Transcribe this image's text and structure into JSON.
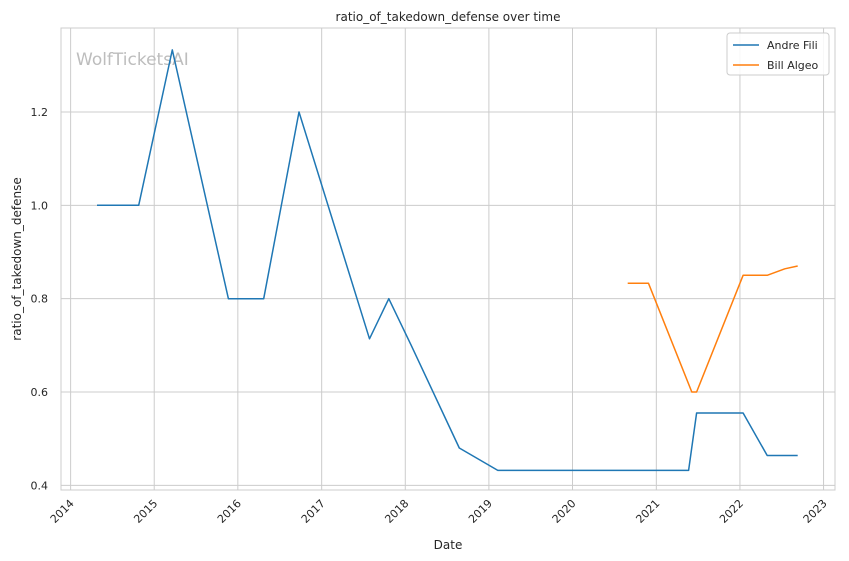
{
  "chart_data": {
    "type": "line",
    "title": "ratio_of_takedown_defense over time",
    "xlabel": "Date",
    "ylabel": "ratio_of_takedown_defense",
    "watermark": "WolfTicketsAI",
    "x_ticks": [
      "2014",
      "2015",
      "2016",
      "2017",
      "2018",
      "2019",
      "2020",
      "2021",
      "2022",
      "2023"
    ],
    "y_ticks": [
      "0.4",
      "0.6",
      "0.8",
      "1.0",
      "1.2"
    ],
    "xlim": [
      "2013-11-20",
      "2023-02-20"
    ],
    "ylim": [
      0.39,
      1.38
    ],
    "grid": true,
    "legend_position": "top-right",
    "series": [
      {
        "name": "Andre Fili",
        "color": "#1f77b4",
        "points": [
          [
            "2014-04-26",
            1.0
          ],
          [
            "2014-10-25",
            1.0
          ],
          [
            "2015-03-21",
            1.333
          ],
          [
            "2015-11-21",
            0.8
          ],
          [
            "2016-04-23",
            0.8
          ],
          [
            "2016-09-24",
            1.2
          ],
          [
            "2017-07-29",
            0.714
          ],
          [
            "2017-10-21",
            0.8
          ],
          [
            "2018-01-27",
            0.7
          ],
          [
            "2018-08-25",
            0.48
          ],
          [
            "2019-02-09",
            0.432
          ],
          [
            "2021-05-22",
            0.432
          ],
          [
            "2021-06-26",
            0.555
          ],
          [
            "2022-01-15",
            0.555
          ],
          [
            "2022-04-30",
            0.464
          ],
          [
            "2022-09-10",
            0.464
          ]
        ]
      },
      {
        "name": "Bill Algeo",
        "color": "#ff7f0e",
        "points": [
          [
            "2020-08-29",
            0.833
          ],
          [
            "2020-11-28",
            0.833
          ],
          [
            "2021-06-05",
            0.6
          ],
          [
            "2021-06-26",
            0.6
          ],
          [
            "2022-01-15",
            0.85
          ],
          [
            "2022-04-30",
            0.85
          ],
          [
            "2022-07-16",
            0.864
          ],
          [
            "2022-09-10",
            0.87
          ]
        ]
      }
    ]
  }
}
